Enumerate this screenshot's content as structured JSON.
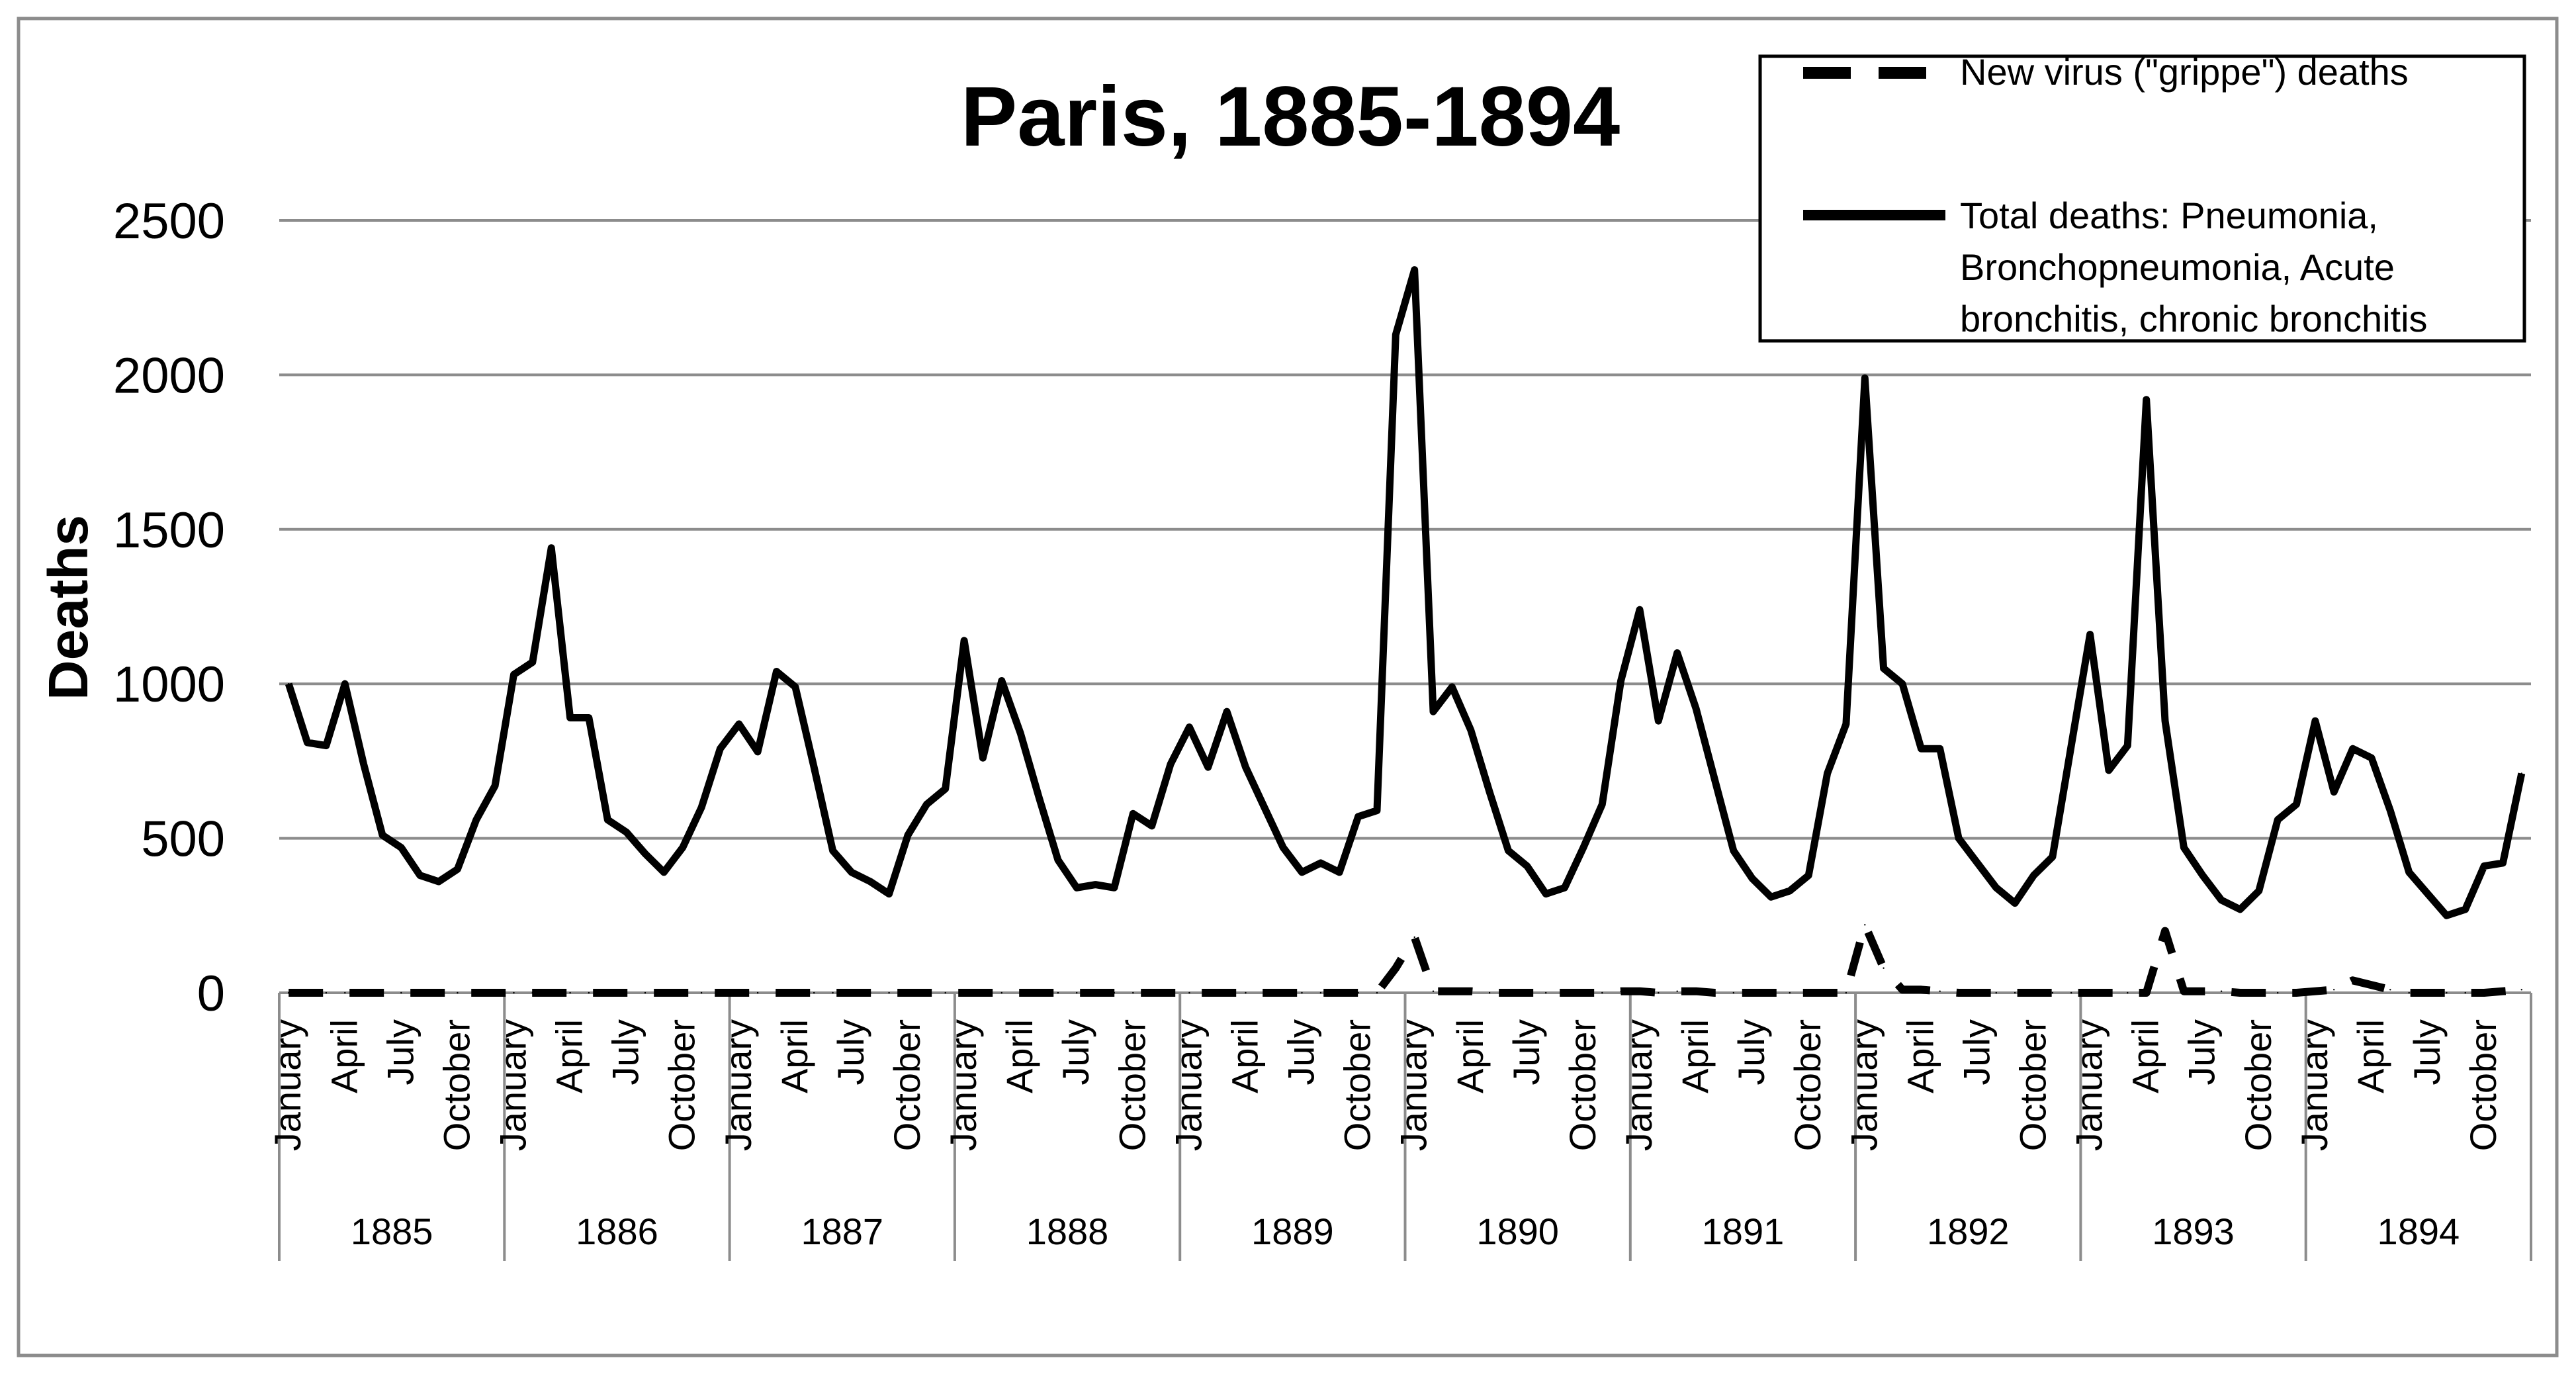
{
  "chart_data": {
    "type": "line",
    "title": "Paris, 1885-1894",
    "xlabel": "",
    "ylabel": "Deaths",
    "ylim": [
      0,
      2500
    ],
    "yticks": [
      0,
      500,
      1000,
      1500,
      2000,
      2500
    ],
    "grid": true,
    "legend_position": "top-right",
    "years": [
      "1885",
      "1886",
      "1887",
      "1888",
      "1889",
      "1890",
      "1891",
      "1892",
      "1893",
      "1894"
    ],
    "month_tick_labels": [
      "January",
      "April",
      "July",
      "October"
    ],
    "series": [
      {
        "name": "New virus (\"grippe\") deaths",
        "style": "dashed",
        "color": "#000000",
        "values": [
          0,
          0,
          0,
          0,
          0,
          0,
          0,
          0,
          0,
          0,
          0,
          0,
          0,
          0,
          0,
          0,
          0,
          0,
          0,
          0,
          0,
          0,
          0,
          0,
          0,
          0,
          0,
          0,
          0,
          0,
          0,
          0,
          0,
          0,
          0,
          0,
          0,
          0,
          0,
          0,
          0,
          0,
          0,
          0,
          0,
          0,
          0,
          0,
          0,
          0,
          0,
          0,
          0,
          0,
          0,
          0,
          0,
          0,
          0,
          80,
          180,
          5,
          5,
          5,
          0,
          0,
          0,
          0,
          0,
          0,
          0,
          5,
          5,
          0,
          5,
          5,
          0,
          0,
          0,
          0,
          0,
          0,
          0,
          0,
          220,
          80,
          10,
          10,
          5,
          0,
          0,
          0,
          0,
          0,
          0,
          0,
          0,
          0,
          0,
          0,
          200,
          5,
          5,
          5,
          0,
          0,
          0,
          0,
          5,
          10,
          40,
          25,
          10,
          0,
          0,
          0,
          0,
          0,
          5,
          10
        ]
      },
      {
        "name": "Total deaths: Pneumonia, Bronchopneumonia, Acute bronchitis, chronic bronchitis",
        "style": "solid",
        "color": "#000000",
        "values": [
          1000,
          810,
          800,
          1000,
          740,
          510,
          470,
          380,
          360,
          400,
          560,
          670,
          1030,
          1070,
          1440,
          890,
          890,
          560,
          520,
          450,
          390,
          470,
          600,
          790,
          870,
          780,
          1040,
          990,
          730,
          460,
          390,
          360,
          320,
          510,
          610,
          660,
          1140,
          760,
          1010,
          840,
          630,
          430,
          340,
          350,
          340,
          580,
          540,
          740,
          860,
          730,
          910,
          730,
          600,
          470,
          390,
          420,
          390,
          570,
          590,
          2130,
          2340,
          910,
          990,
          850,
          650,
          460,
          410,
          320,
          340,
          470,
          610,
          1010,
          1240,
          880,
          1100,
          920,
          690,
          460,
          370,
          310,
          330,
          380,
          710,
          870,
          1990,
          1050,
          1000,
          790,
          790,
          500,
          420,
          340,
          290,
          380,
          440,
          800,
          1160,
          720,
          800,
          1920,
          880,
          470,
          380,
          300,
          270,
          330,
          560,
          610,
          880,
          650,
          790,
          760,
          590,
          390,
          320,
          250,
          270,
          410,
          420,
          710
        ]
      }
    ]
  }
}
